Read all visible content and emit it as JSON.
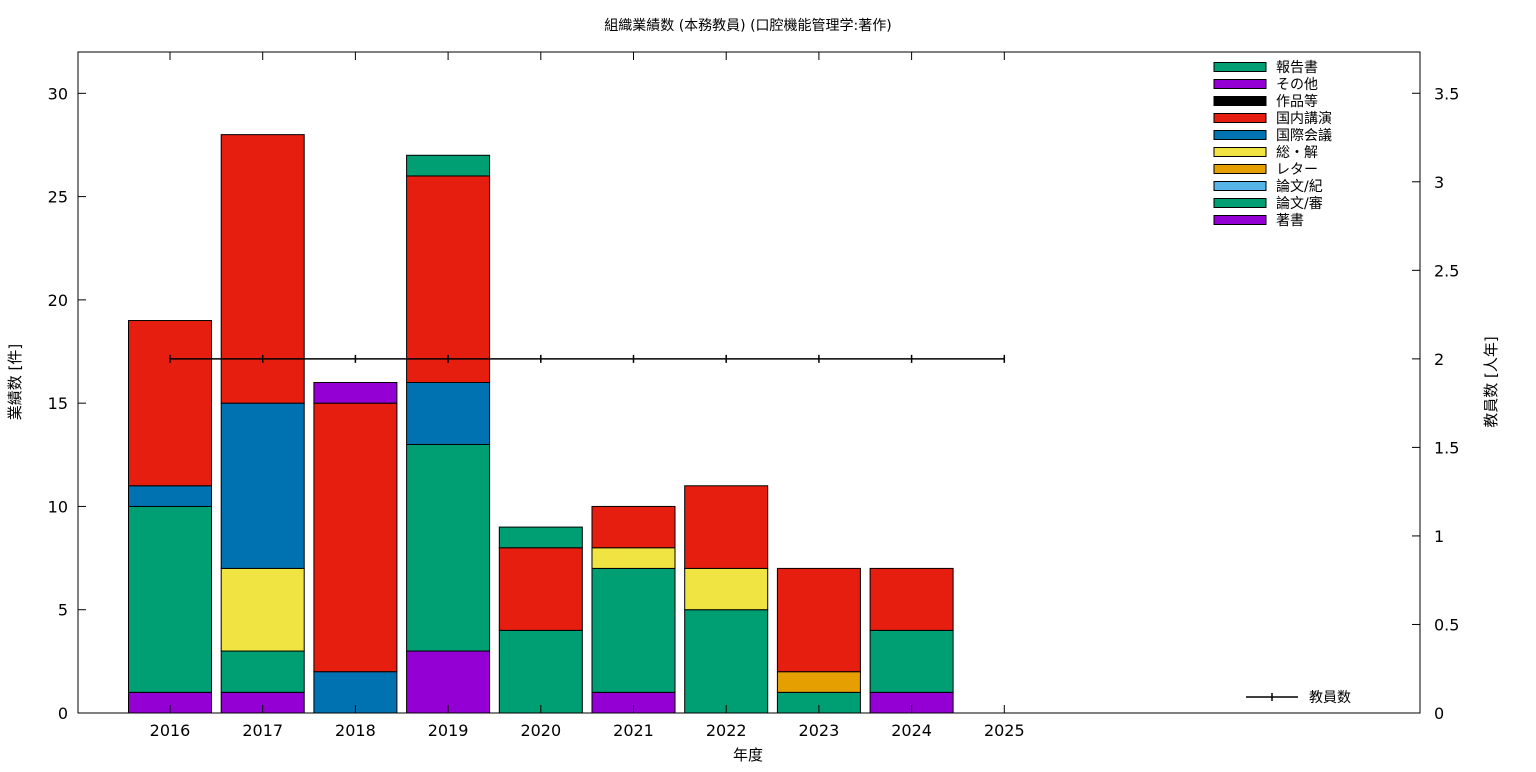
{
  "chart_data": {
    "type": "bar",
    "stacked": true,
    "title": "組織業績数 (本務教員) (口腔機能管理学:著作)",
    "xlabel": "年度",
    "ylabel": "業績数 [件]",
    "y2label": "教員数 [人年]",
    "categories": [
      "2016",
      "2017",
      "2018",
      "2019",
      "2020",
      "2021",
      "2022",
      "2023",
      "2024",
      "2025"
    ],
    "ylim": [
      0,
      32
    ],
    "y2lim": [
      0,
      3.733
    ],
    "yticks": [
      0,
      5,
      10,
      15,
      20,
      25,
      30
    ],
    "y2ticks": [
      "0",
      "0.5",
      "1",
      "1.5",
      "2",
      "2.5",
      "3",
      "3.5"
    ],
    "grid": false,
    "legend_position": "top-right",
    "series": [
      {
        "name": "著書",
        "color": "#9400d3",
        "values": [
          1,
          1,
          0,
          3,
          0,
          1,
          0,
          0,
          1,
          0
        ]
      },
      {
        "name": "論文/審",
        "color": "#009e73",
        "values": [
          9,
          2,
          0,
          10,
          4,
          6,
          5,
          1,
          3,
          0
        ]
      },
      {
        "name": "論文/紀",
        "color": "#56b4e9",
        "values": [
          0,
          0,
          0,
          0,
          0,
          0,
          0,
          0,
          0,
          0
        ]
      },
      {
        "name": "レター",
        "color": "#e69f00",
        "values": [
          0,
          0,
          0,
          0,
          0,
          0,
          0,
          1,
          0,
          0
        ]
      },
      {
        "name": "総・解",
        "color": "#f0e442",
        "values": [
          0,
          4,
          0,
          0,
          0,
          1,
          2,
          0,
          0,
          0
        ]
      },
      {
        "name": "国際会議",
        "color": "#0072b2",
        "values": [
          1,
          8,
          2,
          3,
          0,
          0,
          0,
          0,
          0,
          0
        ]
      },
      {
        "name": "国内講演",
        "color": "#e51e10",
        "values": [
          8,
          13,
          13,
          10,
          4,
          2,
          4,
          5,
          3,
          0
        ]
      },
      {
        "name": "作品等",
        "color": "#000000",
        "values": [
          0,
          0,
          0,
          0,
          0,
          0,
          0,
          0,
          0,
          0
        ]
      },
      {
        "name": "その他",
        "color": "#9400d3",
        "values": [
          0,
          0,
          1,
          0,
          0,
          0,
          0,
          0,
          0,
          0
        ]
      },
      {
        "name": "報告書",
        "color": "#009e73",
        "values": [
          0,
          0,
          0,
          1,
          1,
          0,
          0,
          0,
          0,
          0
        ]
      }
    ],
    "line_series": {
      "name": "教員数",
      "color": "#000000",
      "axis": "y2",
      "values": [
        2,
        2,
        2,
        2,
        2,
        2,
        2,
        2,
        2,
        2
      ]
    },
    "legend_order": [
      "報告書",
      "その他",
      "作品等",
      "国内講演",
      "国際会議",
      "総・解",
      "レター",
      "論文/紀",
      "論文/審",
      "著書"
    ]
  }
}
